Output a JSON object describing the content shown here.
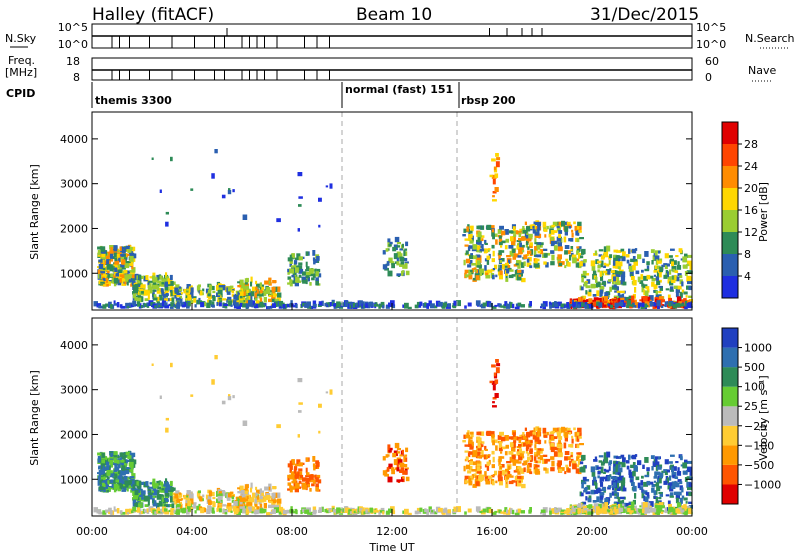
{
  "header": {
    "station": "Halley (fitACF)",
    "beam": "Beam 10",
    "date": "31/Dec/2015"
  },
  "summary": {
    "nsky_label": "N.Sky",
    "nsky_ticks": [
      "10^5",
      "10^0"
    ],
    "nsearch_label": "N.Search",
    "nsearch_ticks": [
      "10^5",
      "10^0"
    ],
    "freq_label_1": "Freq.",
    "freq_label_2": "[MHz]",
    "freq_ticks": [
      "18",
      "8"
    ],
    "nave_label": "Nave",
    "nave_ticks": [
      "60",
      "0"
    ],
    "cpid_label": "CPID",
    "cpid_segments": [
      {
        "label": "themis 3300",
        "start_hours": 0
      },
      {
        "label": "normal (fast) 151",
        "start_hours": 10.0
      },
      {
        "label": "rbsp 200",
        "start_hours": 14.7
      }
    ]
  },
  "chart_data": [
    {
      "type": "heatmap",
      "title": "",
      "ylabel": "Slant Range [km]",
      "xlabel": "",
      "x_range_hours": [
        0,
        24
      ],
      "ylim": [
        180,
        4600
      ],
      "y_ticks": [
        1000,
        2000,
        3000,
        4000
      ],
      "colorbar": {
        "label": "Power [dB]",
        "tick_labels": [
          "4",
          "8",
          "12",
          "16",
          "20",
          "24",
          "28"
        ],
        "colors": [
          "#1f2fe0",
          "#2a5fb0",
          "#2e8b57",
          "#9acd32",
          "#ffd700",
          "#ff8c00",
          "#ff4500",
          "#e00000"
        ]
      }
    },
    {
      "type": "heatmap",
      "title": "",
      "ylabel": "Slant Range [km]",
      "xlabel": "Time UT",
      "x_range_hours": [
        0,
        24
      ],
      "x_tick_labels": [
        "00:00",
        "04:00",
        "08:00",
        "12:00",
        "16:00",
        "20:00",
        "00:00"
      ],
      "ylim": [
        180,
        4600
      ],
      "y_ticks": [
        1000,
        2000,
        3000,
        4000
      ],
      "colorbar": {
        "label": "Velocity [m s⁻¹]",
        "tick_labels": [
          "1000",
          "500",
          "100",
          "25",
          "−25",
          "−100",
          "−500",
          "−1000"
        ],
        "colors": [
          "#2040c0",
          "#2e6fb0",
          "#2e8b57",
          "#66cc33",
          "#bbbbbb",
          "#ffcc33",
          "#ff9900",
          "#ff5500",
          "#e00000"
        ]
      }
    }
  ]
}
